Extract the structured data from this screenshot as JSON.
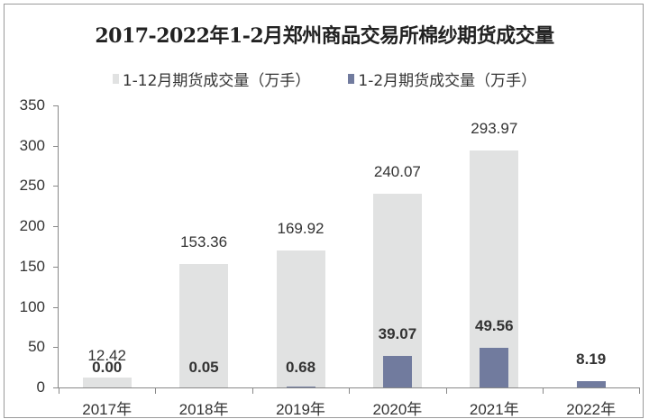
{
  "chart_data": {
    "type": "bar",
    "title": "2017-2022年1-2月郑州商品交易所棉纱期货成交量",
    "xlabel": "",
    "ylabel": "",
    "ylim": [
      0,
      350
    ],
    "yticks": [
      "0",
      "50",
      "100",
      "150",
      "200",
      "250",
      "300",
      "350"
    ],
    "categories": [
      "2017年",
      "2018年",
      "2019年",
      "2020年",
      "2021年",
      "2022年"
    ],
    "series": [
      {
        "name": "1-12月期货成交量（万手）",
        "color": "#e1e2e2",
        "values": [
          12.42,
          153.36,
          169.92,
          240.07,
          293.97,
          null
        ],
        "labels": [
          "12.42",
          "153.36",
          "169.92",
          "240.07",
          "293.97",
          ""
        ]
      },
      {
        "name": "1-2月期货成交量（万手）",
        "color": "#717b9e",
        "values": [
          0.0,
          0.05,
          0.68,
          39.07,
          49.56,
          8.19
        ],
        "labels": [
          "0.00",
          "0.05",
          "0.68",
          "39.07",
          "49.56",
          "8.19"
        ]
      }
    ],
    "legend_position": "top",
    "grid": false
  }
}
